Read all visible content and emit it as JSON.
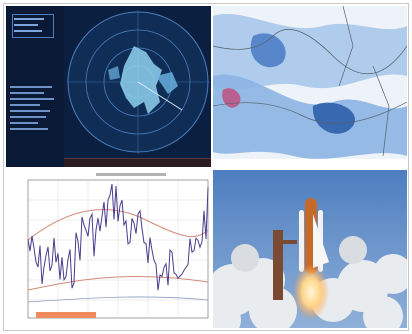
{
  "radar_panel": {
    "title": "",
    "sidebar_lines": [
      "",
      "",
      "",
      "",
      "",
      "",
      "",
      "",
      "",
      ""
    ],
    "colors": {
      "background": "#0b1f40",
      "scope": "#0f2d55",
      "rings": "#4a7fbf",
      "echo": "#8fd1f0"
    }
  },
  "map_panel": {
    "caption": "",
    "colors": {
      "land": "#f4f5f7",
      "precip_light": "#a9c8ea",
      "precip_heavy": "#2d5fa8"
    }
  },
  "plot_panel": {
    "title": "",
    "colors": {
      "series": "#4b3b8f",
      "curve": "#d28b7a",
      "highlight": "#f08a5d"
    }
  },
  "photo_panel": {
    "subject": "rocket-launch-photo",
    "colors": {
      "sky": "#5b87c3",
      "clouds": "#e9ecef",
      "flame": "#ffd58a"
    }
  }
}
